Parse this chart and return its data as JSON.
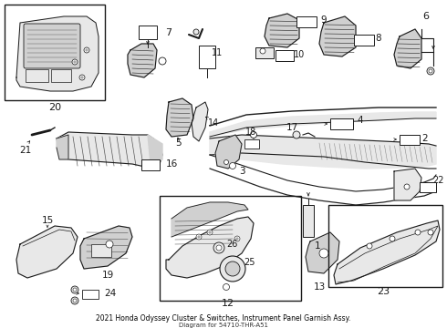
{
  "title": "2021 Honda Odyssey Cluster & Switches, Instrument Panel Garnish Assy.",
  "part_number": "Diagram for 54710-THR-A51",
  "bg_color": "#ffffff",
  "lc": "#1a1a1a",
  "fc_light": "#e8e8e8",
  "fc_mid": "#d0d0d0",
  "fc_dark": "#b0b0b0",
  "border_color": "#555555",
  "fig_width": 4.9,
  "fig_height": 3.6,
  "dpi": 100
}
